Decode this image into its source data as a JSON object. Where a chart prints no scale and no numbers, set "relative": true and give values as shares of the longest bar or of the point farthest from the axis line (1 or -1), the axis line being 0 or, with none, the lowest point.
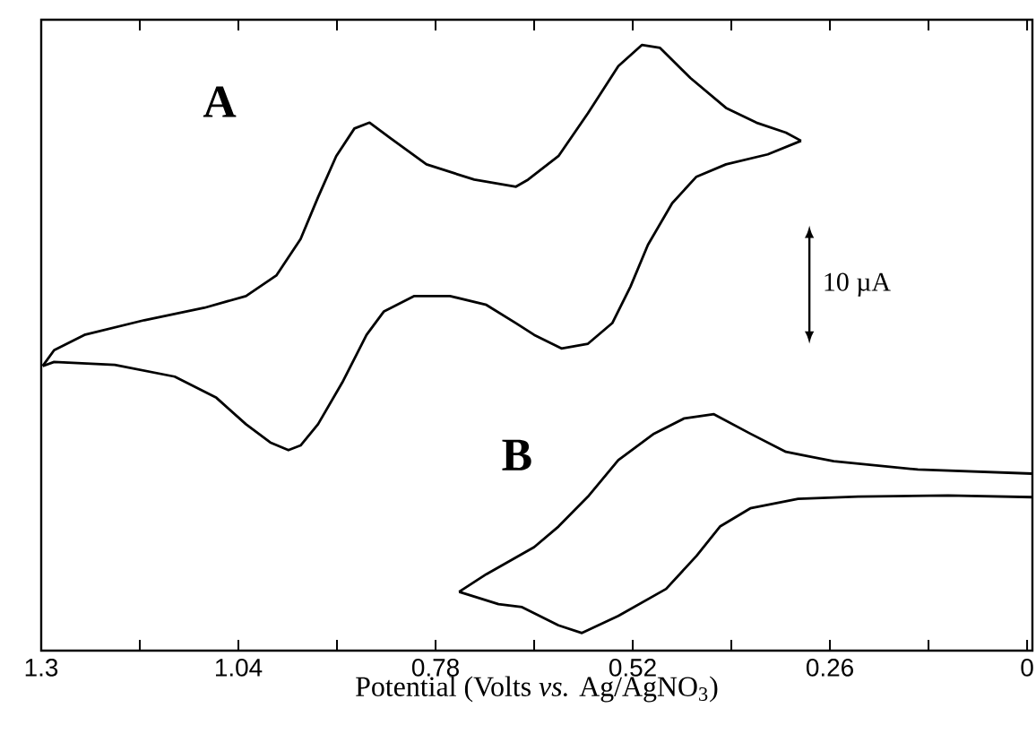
{
  "chart_data": {
    "type": "line",
    "relative": true,
    "xlabel": "Potential (Volts *vs.* Ag/AgNO$_{3}$)",
    "xlim": [
      1.3,
      -0.007
    ],
    "xticks": [
      1.3,
      {
        "value": 1.17,
        "label": null
      },
      1.04,
      {
        "value": 0.91,
        "label": null
      },
      0.78,
      {
        "value": 0.65,
        "label": null
      },
      0.52,
      {
        "value": 0.39,
        "label": null
      },
      0.26,
      {
        "value": 0.13,
        "label": null
      },
      0
    ],
    "annotations": [
      "A",
      "B",
      "10 µA"
    ],
    "marker": "none",
    "line_style": "solid",
    "series": [
      {
        "color": "#000000",
        "x": [
          1.298,
          1.283,
          1.243,
          1.164,
          1.085,
          1.03,
          0.99,
          0.958,
          0.935,
          0.911,
          0.887,
          0.867,
          0.84,
          0.792,
          0.729,
          0.674,
          0.658,
          0.618,
          0.579,
          0.539,
          0.508,
          0.484,
          0.444,
          0.397,
          0.357,
          0.318,
          0.298
        ],
        "values": [
          0.454,
          0.481,
          0.507,
          0.532,
          0.553,
          0.573,
          0.608,
          0.67,
          0.741,
          0.811,
          0.858,
          0.868,
          0.842,
          0.797,
          0.771,
          0.759,
          0.771,
          0.811,
          0.884,
          0.964,
          1.0,
          0.995,
          0.944,
          0.893,
          0.868,
          0.851,
          0.837
        ]
      },
      {
        "color": "#000000",
        "x": [
          0.298,
          0.342,
          0.397,
          0.436,
          0.468,
          0.5,
          0.523,
          0.547,
          0.579,
          0.614,
          0.65,
          0.674,
          0.713,
          0.761,
          0.808,
          0.848,
          0.871,
          0.903,
          0.935,
          0.958,
          0.974,
          0.998,
          1.03,
          1.069,
          1.124,
          1.203,
          1.283,
          1.298
        ],
        "values": [
          0.837,
          0.814,
          0.797,
          0.776,
          0.731,
          0.66,
          0.589,
          0.527,
          0.492,
          0.484,
          0.507,
          0.527,
          0.558,
          0.573,
          0.573,
          0.547,
          0.507,
          0.426,
          0.355,
          0.319,
          0.311,
          0.324,
          0.355,
          0.4,
          0.436,
          0.456,
          0.461,
          0.454
        ]
      },
      {
        "color": "#000000",
        "x": [
          0.749,
          0.713,
          0.65,
          0.618,
          0.579,
          0.539,
          0.492,
          0.452,
          0.413,
          0.365,
          0.318,
          0.255,
          0.144,
          -0.007
        ],
        "values": [
          0.07,
          0.1,
          0.146,
          0.181,
          0.232,
          0.294,
          0.339,
          0.365,
          0.372,
          0.339,
          0.308,
          0.292,
          0.278,
          0.271
        ]
      },
      {
        "color": "#000000",
        "x": [
          -0.007,
          0.104,
          0.223,
          0.302,
          0.365,
          0.405,
          0.436,
          0.476,
          0.539,
          0.587,
          0.618,
          0.666,
          0.697,
          0.749
        ],
        "values": [
          0.231,
          0.234,
          0.232,
          0.228,
          0.212,
          0.181,
          0.131,
          0.075,
          0.029,
          0,
          0.013,
          0.044,
          0.049,
          0.07
        ]
      }
    ]
  }
}
